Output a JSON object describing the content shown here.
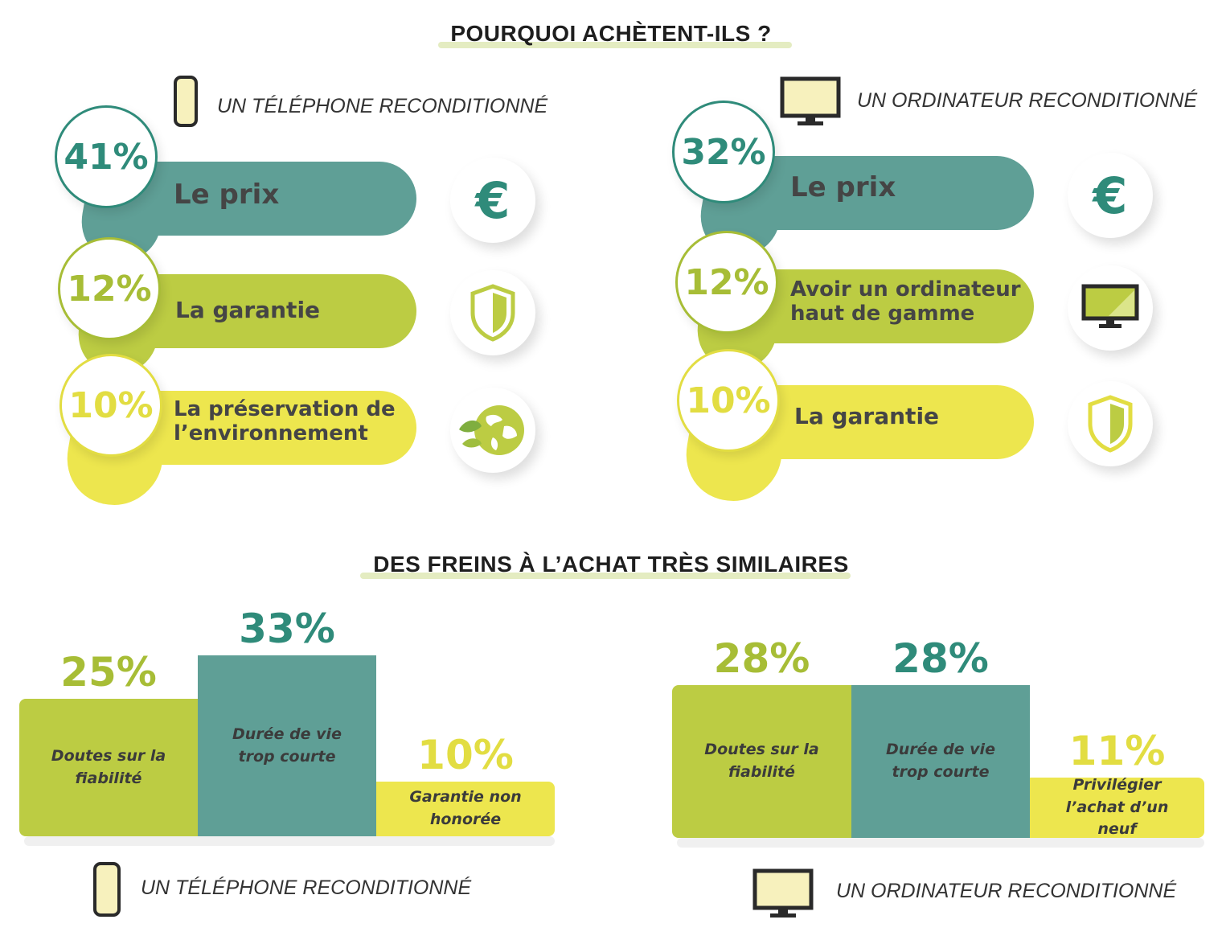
{
  "colors": {
    "teal": "#5f9f96",
    "green": "#bccc43",
    "yellow": "#ede64e",
    "teal_text": "#2f8b7a",
    "green_text": "#a7bd36",
    "yellow_text": "#e2dd42"
  },
  "reasons": {
    "title": "POURQUOI ACHÈTENT-ILS ?",
    "phone": {
      "caption": "UN TÉLÉPHONE RECONDITIONNÉ",
      "device_icon": "phone-icon",
      "items": [
        {
          "pct": "41%",
          "label": "Le prix",
          "icon": "euro-icon",
          "glyph": "€",
          "color": "teal"
        },
        {
          "pct": "12%",
          "label": "La garantie",
          "icon": "shield-icon",
          "color": "green"
        },
        {
          "pct": "10%",
          "label_lines": [
            "La préservation de",
            "l’environnement"
          ],
          "icon": "globe-leaf-icon",
          "color": "yellow"
        }
      ]
    },
    "computer": {
      "caption": "UN ORDINATEUR RECONDITIONNÉ",
      "device_icon": "monitor-icon",
      "items": [
        {
          "pct": "32%",
          "label": "Le prix",
          "icon": "euro-icon",
          "glyph": "€",
          "color": "teal"
        },
        {
          "pct": "12%",
          "label_lines": [
            "Avoir un ordinateur",
            "haut de gamme"
          ],
          "icon": "monitor-icon",
          "color": "green"
        },
        {
          "pct": "10%",
          "label": "La garantie",
          "icon": "shield-icon",
          "color": "yellow"
        }
      ]
    }
  },
  "brakes": {
    "title": "DES FREINS À L’ACHAT TRÈS SIMILAIRES",
    "phone_caption": "UN TÉLÉPHONE RECONDITIONNÉ",
    "computer_caption": "UN ORDINATEUR RECONDITIONNÉ"
  },
  "chart_data": [
    {
      "type": "bar",
      "title": "POURQUOI ACHÈTENT-ILS ?",
      "subtitle": "UN TÉLÉPHONE RECONDITIONNÉ",
      "categories": [
        "Le prix",
        "La garantie",
        "La préservation de l’environnement"
      ],
      "values": [
        41,
        12,
        10
      ],
      "unit": "%"
    },
    {
      "type": "bar",
      "title": "POURQUOI ACHÈTENT-ILS ?",
      "subtitle": "UN ORDINATEUR RECONDITIONNÉ",
      "categories": [
        "Le prix",
        "Avoir un ordinateur haut de gamme",
        "La garantie"
      ],
      "values": [
        32,
        12,
        10
      ],
      "unit": "%"
    },
    {
      "type": "bar",
      "title": "DES FREINS À L’ACHAT TRÈS SIMILAIRES",
      "subtitle": "UN TÉLÉPHONE RECONDITIONNÉ",
      "categories": [
        "Doutes sur la fiabilité",
        "Durée de vie trop courte",
        "Garantie non honorée"
      ],
      "values": [
        25,
        33,
        10
      ],
      "value_labels": [
        "25%",
        "33%",
        "10%"
      ],
      "colors": [
        "#bccc43",
        "#5f9f96",
        "#ede64e"
      ],
      "unit": "%"
    },
    {
      "type": "bar",
      "title": "DES FREINS À L’ACHAT TRÈS SIMILAIRES",
      "subtitle": "UN ORDINATEUR RECONDITIONNÉ",
      "categories": [
        "Doutes sur la fiabilité",
        "Durée de vie trop courte",
        "Privilégier l’achat d’un neuf"
      ],
      "values": [
        28,
        28,
        11
      ],
      "value_labels": [
        "28%",
        "28%",
        "11%"
      ],
      "colors": [
        "#bccc43",
        "#5f9f96",
        "#ede64e"
      ],
      "unit": "%"
    }
  ]
}
